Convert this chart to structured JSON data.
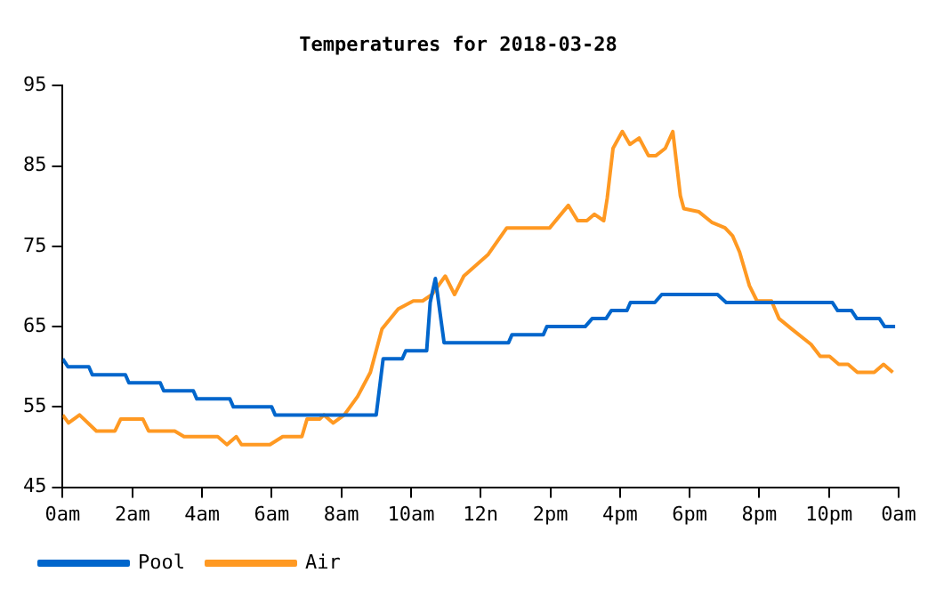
{
  "chart_data": {
    "type": "line",
    "title": "Temperatures for 2018-03-28",
    "xlim": [
      "2018-03-28T00:00",
      "2018-03-29T00:00"
    ],
    "xticks": [
      {
        "value": "2018-03-28T00:00",
        "label": "0am"
      },
      {
        "value": "2018-03-28T02:00",
        "label": "2am"
      },
      {
        "value": "2018-03-28T04:00",
        "label": "4am"
      },
      {
        "value": "2018-03-28T06:00",
        "label": "6am"
      },
      {
        "value": "2018-03-28T08:00",
        "label": "8am"
      },
      {
        "value": "2018-03-28T10:00",
        "label": "10am"
      },
      {
        "value": "2018-03-28T12:00",
        "label": "12n"
      },
      {
        "value": "2018-03-28T14:00",
        "label": "2pm"
      },
      {
        "value": "2018-03-28T16:00",
        "label": "4pm"
      },
      {
        "value": "2018-03-28T18:00",
        "label": "6pm"
      },
      {
        "value": "2018-03-28T20:00",
        "label": "8pm"
      },
      {
        "value": "2018-03-28T22:00",
        "label": "10pm"
      },
      {
        "value": "2018-03-29T00:00",
        "label": "0am"
      }
    ],
    "ylim": [
      45,
      95
    ],
    "yticks": [
      45,
      55,
      65,
      75,
      85,
      95
    ],
    "grid": false,
    "legend": "bottom left",
    "marker": "none",
    "line_style": "solid",
    "series": [
      {
        "name": "Pool",
        "color": "#0066cc",
        "x": [
          "2018-03-28T00:00",
          "2018-03-28T00:09",
          "2018-03-28T00:45",
          "2018-03-28T00:51",
          "2018-03-28T01:48",
          "2018-03-28T01:54",
          "2018-03-28T02:48",
          "2018-03-28T02:54",
          "2018-03-28T03:45",
          "2018-03-28T03:51",
          "2018-03-28T04:48",
          "2018-03-28T04:54",
          "2018-03-28T06:00",
          "2018-03-28T06:06",
          "2018-03-28T09:00",
          "2018-03-28T09:12",
          "2018-03-28T09:45",
          "2018-03-28T09:51",
          "2018-03-28T10:27",
          "2018-03-28T10:33",
          "2018-03-28T10:42",
          "2018-03-28T10:57",
          "2018-03-28T12:48",
          "2018-03-28T12:54",
          "2018-03-28T13:48",
          "2018-03-28T13:54",
          "2018-03-28T15:00",
          "2018-03-28T15:12",
          "2018-03-28T15:36",
          "2018-03-28T15:45",
          "2018-03-28T16:12",
          "2018-03-28T16:18",
          "2018-03-28T17:00",
          "2018-03-28T17:12",
          "2018-03-28T18:48",
          "2018-03-28T19:03",
          "2018-03-28T22:06",
          "2018-03-28T22:15",
          "2018-03-28T22:39",
          "2018-03-28T22:48",
          "2018-03-28T23:27",
          "2018-03-28T23:36",
          "2018-03-28T23:54"
        ],
        "values": [
          61,
          60,
          60,
          59,
          59,
          58,
          58,
          57,
          57,
          56,
          56,
          55,
          55,
          54,
          54,
          61,
          61,
          62,
          62,
          68,
          71,
          63,
          63,
          64,
          64,
          65,
          65,
          66,
          66,
          67,
          67,
          68,
          68,
          69,
          69,
          68,
          68,
          67,
          67,
          66,
          66,
          65,
          65
        ]
      },
      {
        "name": "Air",
        "color": "#ff9922",
        "x": [
          "2018-03-28T00:00",
          "2018-03-28T00:10",
          "2018-03-28T00:29",
          "2018-03-28T00:58",
          "2018-03-28T01:30",
          "2018-03-28T01:40",
          "2018-03-28T02:18",
          "2018-03-28T02:28",
          "2018-03-28T03:13",
          "2018-03-28T03:29",
          "2018-03-28T04:27",
          "2018-03-28T04:43",
          "2018-03-28T04:59",
          "2018-03-28T05:08",
          "2018-03-28T05:57",
          "2018-03-28T06:19",
          "2018-03-28T06:52",
          "2018-03-28T07:01",
          "2018-03-28T07:23",
          "2018-03-28T07:30",
          "2018-03-28T07:46",
          "2018-03-28T08:05",
          "2018-03-28T08:28",
          "2018-03-28T08:50",
          "2018-03-28T09:10",
          "2018-03-28T09:38",
          "2018-03-28T10:04",
          "2018-03-28T10:20",
          "2018-03-28T10:36",
          "2018-03-28T10:59",
          "2018-03-28T11:15",
          "2018-03-28T11:31",
          "2018-03-28T12:13",
          "2018-03-28T12:45",
          "2018-03-28T13:59",
          "2018-03-28T14:31",
          "2018-03-28T14:47",
          "2018-03-28T15:03",
          "2018-03-28T15:16",
          "2018-03-28T15:32",
          "2018-03-28T15:38",
          "2018-03-28T15:48",
          "2018-03-28T16:04",
          "2018-03-28T16:17",
          "2018-03-28T16:33",
          "2018-03-28T16:49",
          "2018-03-28T17:02",
          "2018-03-28T17:18",
          "2018-03-28T17:31",
          "2018-03-28T17:44",
          "2018-03-28T17:50",
          "2018-03-28T18:16",
          "2018-03-28T18:38",
          "2018-03-28T19:01",
          "2018-03-28T19:14",
          "2018-03-28T19:26",
          "2018-03-28T19:43",
          "2018-03-28T19:56",
          "2018-03-28T20:21",
          "2018-03-28T20:34",
          "2018-03-28T20:56",
          "2018-03-28T21:29",
          "2018-03-28T21:45",
          "2018-03-28T22:01",
          "2018-03-28T22:17",
          "2018-03-28T22:33",
          "2018-03-28T22:49",
          "2018-03-28T23:18",
          "2018-03-28T23:34",
          "2018-03-28T23:50"
        ],
        "values": [
          54,
          53,
          54,
          52,
          52,
          53.5,
          53.5,
          52,
          52,
          51.3,
          51.3,
          50.3,
          51.3,
          50.3,
          50.3,
          51.3,
          51.3,
          53.5,
          53.5,
          54,
          53,
          54,
          56.3,
          59.3,
          64.7,
          67.2,
          68.2,
          68.2,
          69,
          71.3,
          69,
          71.3,
          74,
          77.3,
          77.3,
          80.1,
          78.2,
          78.2,
          79,
          78.2,
          81,
          87.2,
          89.3,
          87.7,
          88.5,
          86.3,
          86.3,
          87.2,
          89.3,
          81.3,
          79.7,
          79.3,
          78,
          77.3,
          76.3,
          74.3,
          70.1,
          68.2,
          68.2,
          66,
          64.7,
          62.8,
          61.3,
          61.3,
          60.3,
          60.3,
          59.3,
          59.3,
          60.3,
          59.3
        ]
      }
    ]
  }
}
